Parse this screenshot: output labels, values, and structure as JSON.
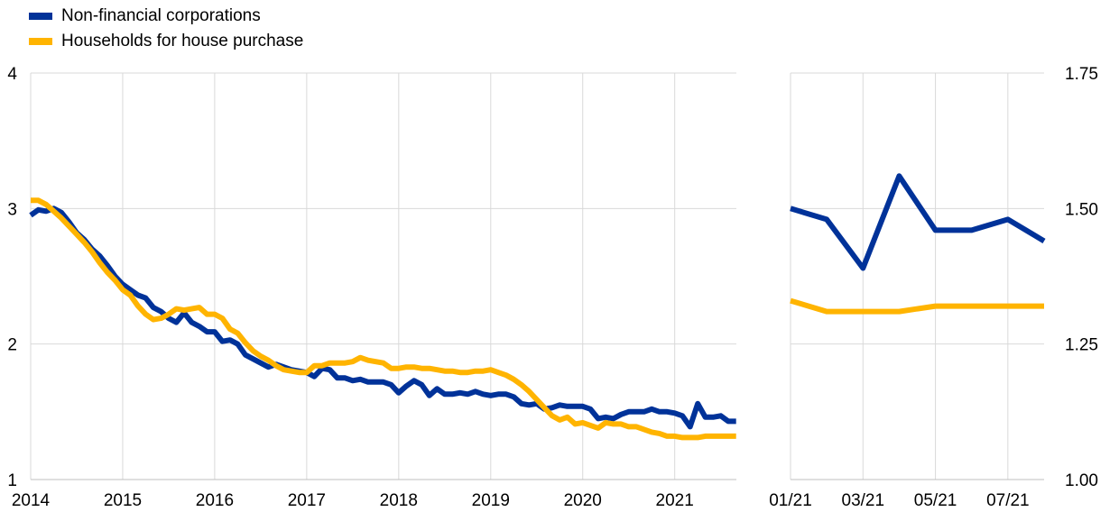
{
  "colors": {
    "nfc": "#003299",
    "hh": "#FFB400",
    "grid": "#d9d9d9",
    "text": "#000000"
  },
  "legend": [
    {
      "label": "Non-financial corporations",
      "color": "#003299"
    },
    {
      "label": "Households for house purchase",
      "color": "#FFB400"
    }
  ],
  "chart_data": [
    {
      "type": "line",
      "x_ticks": [
        "2014",
        "2015",
        "2016",
        "2017",
        "2018",
        "2019",
        "2020",
        "2021"
      ],
      "x_range": [
        2014.0,
        2021.67
      ],
      "ylim": [
        1,
        4
      ],
      "y_ticks": [
        "1",
        "2",
        "3",
        "4"
      ],
      "grid": "vertical and horizontal",
      "legend_position": "top-left",
      "series": [
        {
          "name": "Non-financial corporations",
          "color": "#003299",
          "x": [
            2014.0,
            2014.083,
            2014.167,
            2014.25,
            2014.333,
            2014.417,
            2014.5,
            2014.583,
            2014.667,
            2014.75,
            2014.833,
            2014.917,
            2015.0,
            2015.083,
            2015.167,
            2015.25,
            2015.333,
            2015.417,
            2015.5,
            2015.583,
            2015.667,
            2015.75,
            2015.833,
            2015.917,
            2016.0,
            2016.083,
            2016.167,
            2016.25,
            2016.333,
            2016.417,
            2016.5,
            2016.583,
            2016.667,
            2016.75,
            2016.833,
            2016.917,
            2017.0,
            2017.083,
            2017.167,
            2017.25,
            2017.333,
            2017.417,
            2017.5,
            2017.583,
            2017.667,
            2017.75,
            2017.833,
            2017.917,
            2018.0,
            2018.083,
            2018.167,
            2018.25,
            2018.333,
            2018.417,
            2018.5,
            2018.583,
            2018.667,
            2018.75,
            2018.833,
            2018.917,
            2019.0,
            2019.083,
            2019.167,
            2019.25,
            2019.333,
            2019.417,
            2019.5,
            2019.583,
            2019.667,
            2019.75,
            2019.833,
            2019.917,
            2020.0,
            2020.083,
            2020.167,
            2020.25,
            2020.333,
            2020.417,
            2020.5,
            2020.583,
            2020.667,
            2020.75,
            2020.833,
            2020.917,
            2021.0,
            2021.083,
            2021.167,
            2021.25,
            2021.333,
            2021.417,
            2021.5,
            2021.583,
            2021.667
          ],
          "values": [
            2.95,
            2.99,
            2.98,
            3.0,
            2.97,
            2.9,
            2.82,
            2.77,
            2.7,
            2.65,
            2.58,
            2.5,
            2.44,
            2.4,
            2.36,
            2.34,
            2.27,
            2.24,
            2.19,
            2.16,
            2.23,
            2.16,
            2.13,
            2.09,
            2.09,
            2.02,
            2.03,
            2.0,
            1.92,
            1.89,
            1.86,
            1.83,
            1.85,
            1.83,
            1.81,
            1.8,
            1.79,
            1.76,
            1.82,
            1.81,
            1.75,
            1.75,
            1.73,
            1.74,
            1.72,
            1.72,
            1.72,
            1.7,
            1.64,
            1.69,
            1.73,
            1.7,
            1.62,
            1.67,
            1.63,
            1.63,
            1.64,
            1.63,
            1.65,
            1.63,
            1.62,
            1.63,
            1.63,
            1.61,
            1.56,
            1.55,
            1.56,
            1.52,
            1.53,
            1.55,
            1.54,
            1.54,
            1.54,
            1.52,
            1.45,
            1.46,
            1.45,
            1.48,
            1.5,
            1.5,
            1.5,
            1.52,
            1.5,
            1.5,
            1.49,
            1.47,
            1.39,
            1.56,
            1.46,
            1.46,
            1.47,
            1.43,
            1.43
          ]
        },
        {
          "name": "Households for house purchase",
          "color": "#FFB400",
          "x": [
            2014.0,
            2014.083,
            2014.167,
            2014.25,
            2014.333,
            2014.417,
            2014.5,
            2014.583,
            2014.667,
            2014.75,
            2014.833,
            2014.917,
            2015.0,
            2015.083,
            2015.167,
            2015.25,
            2015.333,
            2015.417,
            2015.5,
            2015.583,
            2015.667,
            2015.75,
            2015.833,
            2015.917,
            2016.0,
            2016.083,
            2016.167,
            2016.25,
            2016.333,
            2016.417,
            2016.5,
            2016.583,
            2016.667,
            2016.75,
            2016.833,
            2016.917,
            2017.0,
            2017.083,
            2017.167,
            2017.25,
            2017.333,
            2017.417,
            2017.5,
            2017.583,
            2017.667,
            2017.75,
            2017.833,
            2017.917,
            2018.0,
            2018.083,
            2018.167,
            2018.25,
            2018.333,
            2018.417,
            2018.5,
            2018.583,
            2018.667,
            2018.75,
            2018.833,
            2018.917,
            2019.0,
            2019.083,
            2019.167,
            2019.25,
            2019.333,
            2019.417,
            2019.5,
            2019.583,
            2019.667,
            2019.75,
            2019.833,
            2019.917,
            2020.0,
            2020.083,
            2020.167,
            2020.25,
            2020.333,
            2020.417,
            2020.5,
            2020.583,
            2020.667,
            2020.75,
            2020.833,
            2020.917,
            2021.0,
            2021.083,
            2021.167,
            2021.25,
            2021.333,
            2021.417,
            2021.5,
            2021.583,
            2021.667
          ],
          "values": [
            3.06,
            3.06,
            3.03,
            2.98,
            2.93,
            2.87,
            2.81,
            2.75,
            2.68,
            2.6,
            2.53,
            2.47,
            2.4,
            2.36,
            2.28,
            2.22,
            2.18,
            2.19,
            2.22,
            2.26,
            2.25,
            2.26,
            2.27,
            2.22,
            2.22,
            2.19,
            2.11,
            2.08,
            2.01,
            1.95,
            1.91,
            1.88,
            1.84,
            1.81,
            1.8,
            1.79,
            1.79,
            1.84,
            1.84,
            1.86,
            1.86,
            1.86,
            1.87,
            1.9,
            1.88,
            1.87,
            1.86,
            1.82,
            1.82,
            1.83,
            1.83,
            1.82,
            1.82,
            1.81,
            1.8,
            1.8,
            1.79,
            1.79,
            1.8,
            1.8,
            1.81,
            1.79,
            1.77,
            1.74,
            1.7,
            1.65,
            1.59,
            1.53,
            1.47,
            1.44,
            1.46,
            1.41,
            1.42,
            1.4,
            1.38,
            1.42,
            1.41,
            1.41,
            1.39,
            1.39,
            1.37,
            1.35,
            1.34,
            1.32,
            1.32,
            1.31,
            1.31,
            1.31,
            1.32,
            1.32,
            1.32,
            1.32,
            1.32
          ]
        }
      ]
    },
    {
      "type": "line",
      "x_ticks": [
        "01/21",
        "03/21",
        "05/21",
        "07/21"
      ],
      "x_range": [
        1,
        8
      ],
      "x_tick_positions": [
        1,
        3,
        5,
        7
      ],
      "ylim": [
        1.0,
        1.75
      ],
      "y_ticks": [
        "1.00",
        "1.25",
        "1.50",
        "1.75"
      ],
      "grid": "vertical and horizontal",
      "series": [
        {
          "name": "Non-financial corporations",
          "color": "#003299",
          "x": [
            1,
            2,
            3,
            4,
            5,
            6,
            7,
            8
          ],
          "values": [
            1.5,
            1.48,
            1.39,
            1.56,
            1.46,
            1.46,
            1.48,
            1.44
          ]
        },
        {
          "name": "Households for house purchase",
          "color": "#FFB400",
          "x": [
            1,
            2,
            3,
            4,
            5,
            6,
            7,
            8
          ],
          "values": [
            1.33,
            1.31,
            1.31,
            1.31,
            1.32,
            1.32,
            1.32,
            1.32
          ]
        }
      ]
    }
  ]
}
